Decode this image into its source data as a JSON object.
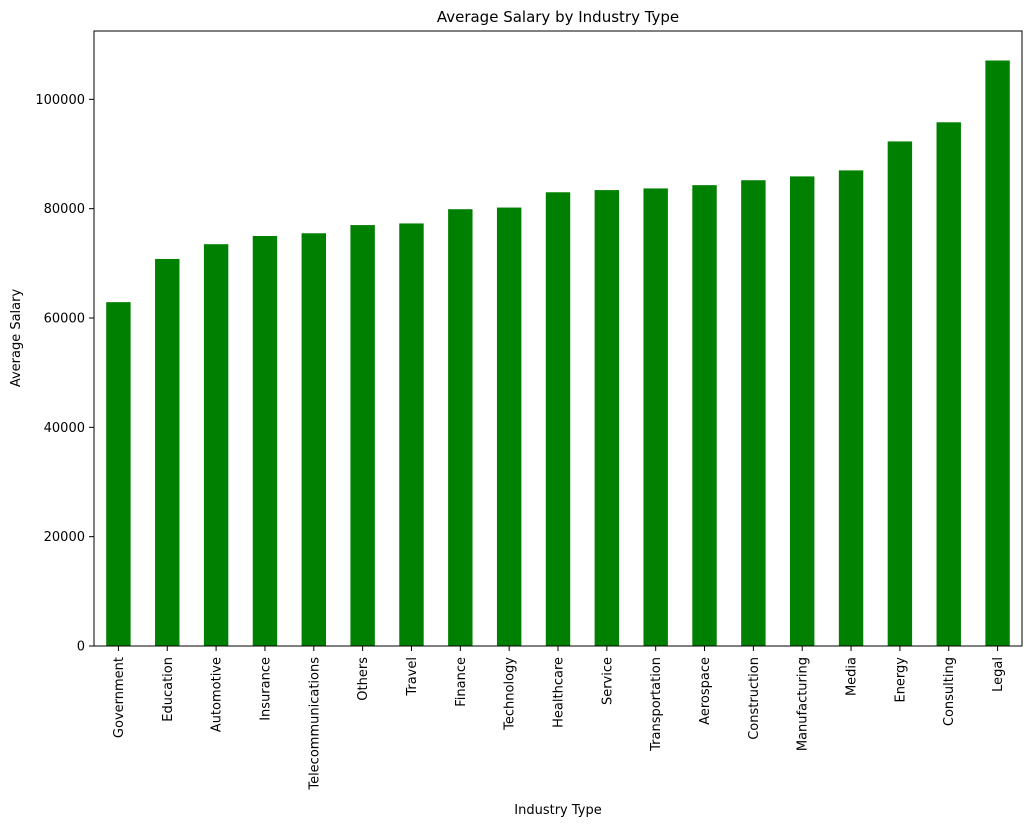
{
  "chart_data": {
    "type": "bar",
    "title": "Average Salary by Industry Type",
    "xlabel": "Industry Type",
    "ylabel": "Average Salary",
    "categories": [
      "Government",
      "Education",
      "Automotive",
      "Insurance",
      "Telecommunications",
      "Others",
      "Travel",
      "Finance",
      "Technology",
      "Healthcare",
      "Service",
      "Transportation",
      "Aerospace",
      "Construction",
      "Manufacturing",
      "Media",
      "Energy",
      "Consulting",
      "Legal"
    ],
    "values": [
      62900,
      70800,
      73500,
      75000,
      75500,
      77000,
      77300,
      79900,
      80200,
      83000,
      83400,
      83700,
      84300,
      85200,
      85900,
      87000,
      92300,
      95800,
      107100
    ],
    "ylim": [
      0,
      112500
    ],
    "yticks": [
      0,
      20000,
      40000,
      60000,
      80000,
      100000
    ],
    "ytick_labels": [
      "0",
      "20000",
      "40000",
      "60000",
      "80000",
      "100000"
    ],
    "bar_color": "#008000",
    "grid": false,
    "legend": "none"
  }
}
